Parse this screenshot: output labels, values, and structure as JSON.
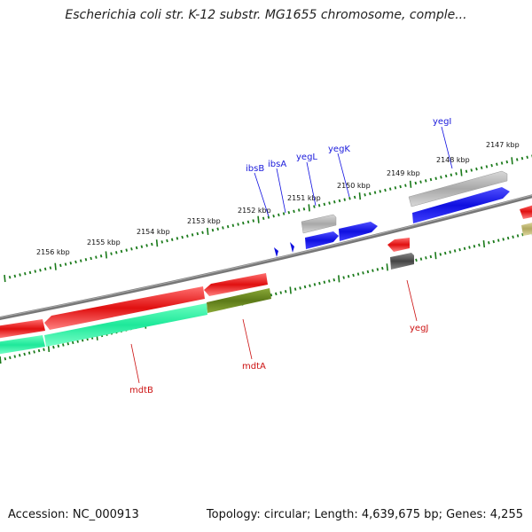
{
  "title": "Escherichia coli str. K-12 substr. MG1655 chromosome, comple...",
  "footer": {
    "accession": "Accession: NC_000913",
    "summary": "Topology: circular; Length: 4,639,675 bp; Genes: 4,255"
  },
  "kbp_labels": [
    "2147 kbp",
    "2148 kbp",
    "2149 kbp",
    "2150 kbp",
    "2151 kbp",
    "2152 kbp",
    "2153 kbp",
    "2154 kbp",
    "2155 kbp",
    "2156 kbp"
  ],
  "genes_top": [
    "yegI",
    "yegK",
    "yegL",
    "ibsA",
    "ibsB"
  ],
  "genes_bottom": [
    "yegJ",
    "mdtA",
    "mdtB"
  ],
  "colors": {
    "blue": "#1010e0",
    "red": "#e01010",
    "green": "#22e89a",
    "olive": "#6b8a22",
    "gray_light": "#b8b8b8",
    "gray_dark": "#555555",
    "backbone": "#777777",
    "ticks": "#1a7a1a"
  }
}
